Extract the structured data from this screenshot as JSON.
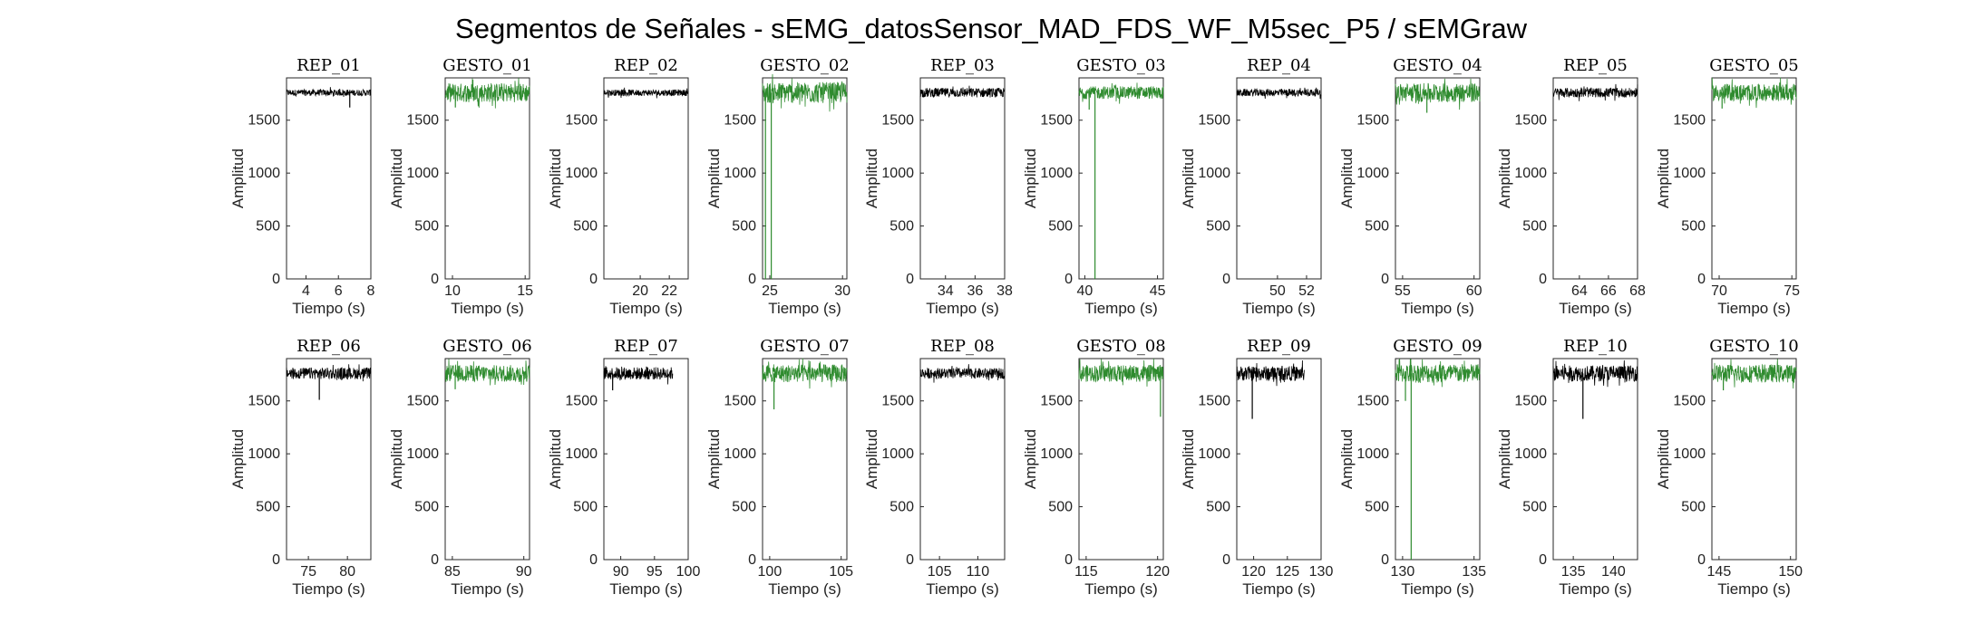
{
  "figure": {
    "title": "Segmentos de Señales - sEMG_datosSensor_MAD_FDS_WF_M5sec_P5 / sEMGraw"
  },
  "chart_data": [
    {
      "type": "line",
      "title": "REP_01",
      "xlabel": "Tiempo (s)",
      "ylabel": "Amplitud",
      "xlim": [
        2.8,
        8
      ],
      "xticks": [
        4,
        6,
        8
      ],
      "ylim": [
        0,
        1900
      ],
      "yticks": [
        0,
        500,
        1000,
        1500
      ],
      "color": "#000000",
      "series": [
        {
          "x": [
            2.8,
            8
          ],
          "y": [
            1760,
            1760
          ]
        }
      ],
      "noise": 30,
      "dips": [
        [
          6.7,
          1620
        ]
      ]
    },
    {
      "type": "line",
      "title": "GESTO_01",
      "xlabel": "Tiempo (s)",
      "ylabel": "Amplitud",
      "xlim": [
        9.5,
        15.3
      ],
      "xticks": [
        10,
        15
      ],
      "ylim": [
        0,
        1900
      ],
      "yticks": [
        0,
        500,
        1000,
        1500
      ],
      "color": "#2e8b2e",
      "series": [
        {
          "x": [
            9.5,
            15.3
          ],
          "y": [
            1760,
            1760
          ]
        }
      ],
      "noise": 90,
      "dips": [
        [
          10.2,
          1620
        ]
      ]
    },
    {
      "type": "line",
      "title": "REP_02",
      "xlabel": "Tiempo (s)",
      "ylabel": "Amplitud",
      "xlim": [
        17.5,
        23.3
      ],
      "xticks": [
        20,
        22
      ],
      "ylim": [
        0,
        1900
      ],
      "yticks": [
        0,
        500,
        1000,
        1500
      ],
      "color": "#000000",
      "series": [
        {
          "x": [
            17.5,
            23.3
          ],
          "y": [
            1760,
            1760
          ]
        }
      ],
      "noise": 30,
      "dips": []
    },
    {
      "type": "line",
      "title": "GESTO_02",
      "xlabel": "Tiempo (s)",
      "ylabel": "Amplitud",
      "xlim": [
        24.5,
        30.3
      ],
      "xticks": [
        25,
        30
      ],
      "ylim": [
        0,
        1900
      ],
      "yticks": [
        0,
        500,
        1000,
        1500
      ],
      "color": "#2e8b2e",
      "series": [
        {
          "x": [
            24.5,
            30.3
          ],
          "y": [
            1760,
            1760
          ]
        }
      ],
      "noise": 100,
      "dips": [
        [
          24.7,
          0
        ],
        [
          25.1,
          0
        ]
      ]
    },
    {
      "type": "line",
      "title": "REP_03",
      "xlabel": "Tiempo (s)",
      "ylabel": "Amplitud",
      "xlim": [
        32.3,
        38
      ],
      "xticks": [
        34,
        36,
        38
      ],
      "ylim": [
        0,
        1900
      ],
      "yticks": [
        0,
        500,
        1000,
        1500
      ],
      "color": "#000000",
      "series": [
        {
          "x": [
            32.3,
            38
          ],
          "y": [
            1760,
            1760
          ]
        }
      ],
      "noise": 45,
      "dips": []
    },
    {
      "type": "line",
      "title": "GESTO_03",
      "xlabel": "Tiempo (s)",
      "ylabel": "Amplitud",
      "xlim": [
        39.6,
        45.4
      ],
      "xticks": [
        40,
        45
      ],
      "ylim": [
        0,
        1900
      ],
      "yticks": [
        0,
        500,
        1000,
        1500
      ],
      "color": "#2e8b2e",
      "series": [
        {
          "x": [
            39.6,
            45.4
          ],
          "y": [
            1760,
            1760
          ]
        }
      ],
      "noise": 60,
      "dips": [
        [
          40.7,
          0
        ],
        [
          40.3,
          1600
        ]
      ]
    },
    {
      "type": "line",
      "title": "REP_04",
      "xlabel": "Tiempo (s)",
      "ylabel": "Amplitud",
      "xlim": [
        47.2,
        53
      ],
      "xticks": [
        50,
        52
      ],
      "ylim": [
        0,
        1900
      ],
      "yticks": [
        0,
        500,
        1000,
        1500
      ],
      "color": "#000000",
      "series": [
        {
          "x": [
            47.2,
            53
          ],
          "y": [
            1760,
            1760
          ]
        }
      ],
      "noise": 35,
      "dips": []
    },
    {
      "type": "line",
      "title": "GESTO_04",
      "xlabel": "Tiempo (s)",
      "ylabel": "Amplitud",
      "xlim": [
        54.5,
        60.4
      ],
      "xticks": [
        55,
        60
      ],
      "ylim": [
        0,
        1900
      ],
      "yticks": [
        0,
        500,
        1000,
        1500
      ],
      "color": "#2e8b2e",
      "series": [
        {
          "x": [
            54.5,
            60.4
          ],
          "y": [
            1760,
            1760
          ]
        }
      ],
      "noise": 90,
      "dips": [
        [
          56.7,
          1570
        ]
      ]
    },
    {
      "type": "line",
      "title": "REP_05",
      "xlabel": "Tiempo (s)",
      "ylabel": "Amplitud",
      "xlim": [
        62.2,
        68
      ],
      "xticks": [
        64,
        66,
        68
      ],
      "ylim": [
        0,
        1900
      ],
      "yticks": [
        0,
        500,
        1000,
        1500
      ],
      "color": "#000000",
      "series": [
        {
          "x": [
            62.2,
            68
          ],
          "y": [
            1760,
            1760
          ]
        }
      ],
      "noise": 45,
      "dips": []
    },
    {
      "type": "line",
      "title": "GESTO_05",
      "xlabel": "Tiempo (s)",
      "ylabel": "Amplitud",
      "xlim": [
        69.5,
        75.3
      ],
      "xticks": [
        70,
        75
      ],
      "ylim": [
        0,
        1900
      ],
      "yticks": [
        0,
        500,
        1000,
        1500
      ],
      "color": "#2e8b2e",
      "series": [
        {
          "x": [
            69.5,
            75.3
          ],
          "y": [
            1760,
            1760
          ]
        }
      ],
      "noise": 80,
      "dips": [
        [
          70.2,
          1610
        ]
      ]
    },
    {
      "type": "line",
      "title": "REP_06",
      "xlabel": "Tiempo (s)",
      "ylabel": "Amplitud",
      "xlim": [
        72.2,
        83
      ],
      "xticks": [
        75,
        80
      ],
      "ylim": [
        0,
        1900
      ],
      "yticks": [
        0,
        500,
        1000,
        1500
      ],
      "color": "#000000",
      "series": [
        {
          "x": [
            72.2,
            83
          ],
          "y": [
            1760,
            1760
          ]
        }
      ],
      "noise": 55,
      "dips": [
        [
          76.4,
          1510
        ]
      ]
    },
    {
      "type": "line",
      "title": "GESTO_06",
      "xlabel": "Tiempo (s)",
      "ylabel": "Amplitud",
      "xlim": [
        84.5,
        90.4
      ],
      "xticks": [
        85,
        90
      ],
      "ylim": [
        0,
        1900
      ],
      "yticks": [
        0,
        500,
        1000,
        1500
      ],
      "color": "#2e8b2e",
      "series": [
        {
          "x": [
            84.5,
            90.4
          ],
          "y": [
            1760,
            1760
          ]
        }
      ],
      "noise": 80,
      "dips": [
        [
          85.2,
          1610
        ]
      ]
    },
    {
      "type": "line",
      "title": "REP_07",
      "xlabel": "Tiempo (s)",
      "ylabel": "Amplitud",
      "xlim": [
        87.5,
        100
      ],
      "xticks": [
        90,
        95,
        100
      ],
      "ylim": [
        0,
        1900
      ],
      "yticks": [
        0,
        500,
        1000,
        1500
      ],
      "color": "#000000",
      "series": [
        {
          "x": [
            87.5,
            97.7
          ],
          "y": [
            1760,
            1760
          ]
        }
      ],
      "noise": 60,
      "dips": [
        [
          88.8,
          1600
        ]
      ]
    },
    {
      "type": "line",
      "title": "GESTO_07",
      "xlabel": "Tiempo (s)",
      "ylabel": "Amplitud",
      "xlim": [
        99.5,
        105.4
      ],
      "xticks": [
        100,
        105
      ],
      "ylim": [
        0,
        1900
      ],
      "yticks": [
        0,
        500,
        1000,
        1500
      ],
      "color": "#2e8b2e",
      "series": [
        {
          "x": [
            99.5,
            105.4
          ],
          "y": [
            1760,
            1760
          ]
        }
      ],
      "noise": 85,
      "dips": [
        [
          100.3,
          1420
        ]
      ]
    },
    {
      "type": "line",
      "title": "REP_08",
      "xlabel": "Tiempo (s)",
      "ylabel": "Amplitud",
      "xlim": [
        102.5,
        113.5
      ],
      "xticks": [
        105,
        110
      ],
      "ylim": [
        0,
        1900
      ],
      "yticks": [
        0,
        500,
        1000,
        1500
      ],
      "color": "#000000",
      "series": [
        {
          "x": [
            102.5,
            113.5
          ],
          "y": [
            1760,
            1760
          ]
        }
      ],
      "noise": 50,
      "dips": []
    },
    {
      "type": "line",
      "title": "GESTO_08",
      "xlabel": "Tiempo (s)",
      "ylabel": "Amplitud",
      "xlim": [
        114.5,
        120.4
      ],
      "xticks": [
        115,
        120
      ],
      "ylim": [
        0,
        1900
      ],
      "yticks": [
        0,
        500,
        1000,
        1500
      ],
      "color": "#2e8b2e",
      "series": [
        {
          "x": [
            114.5,
            120.4
          ],
          "y": [
            1760,
            1760
          ]
        }
      ],
      "noise": 80,
      "dips": [
        [
          120.2,
          1350
        ]
      ]
    },
    {
      "type": "line",
      "title": "REP_09",
      "xlabel": "Tiempo (s)",
      "ylabel": "Amplitud",
      "xlim": [
        117.5,
        130
      ],
      "xticks": [
        120,
        125,
        130
      ],
      "ylim": [
        0,
        1900
      ],
      "yticks": [
        0,
        500,
        1000,
        1500
      ],
      "color": "#000000",
      "series": [
        {
          "x": [
            117.5,
            127.5
          ],
          "y": [
            1760,
            1760
          ]
        }
      ],
      "noise": 70,
      "dips": [
        [
          119.8,
          1330
        ]
      ]
    },
    {
      "type": "line",
      "title": "GESTO_09",
      "xlabel": "Tiempo (s)",
      "ylabel": "Amplitud",
      "xlim": [
        129.5,
        135.4
      ],
      "xticks": [
        130,
        135
      ],
      "ylim": [
        0,
        1900
      ],
      "yticks": [
        0,
        500,
        1000,
        1500
      ],
      "color": "#2e8b2e",
      "series": [
        {
          "x": [
            129.5,
            135.4
          ],
          "y": [
            1760,
            1760
          ]
        }
      ],
      "noise": 90,
      "dips": [
        [
          130.6,
          0
        ],
        [
          130.2,
          1500
        ]
      ]
    },
    {
      "type": "line",
      "title": "REP_10",
      "xlabel": "Tiempo (s)",
      "ylabel": "Amplitud",
      "xlim": [
        132.5,
        143
      ],
      "xticks": [
        135,
        140
      ],
      "ylim": [
        0,
        1900
      ],
      "yticks": [
        0,
        500,
        1000,
        1500
      ],
      "color": "#000000",
      "series": [
        {
          "x": [
            132.5,
            143
          ],
          "y": [
            1760,
            1760
          ]
        }
      ],
      "noise": 75,
      "dips": [
        [
          136.2,
          1330
        ]
      ]
    },
    {
      "type": "line",
      "title": "GESTO_10",
      "xlabel": "Tiempo (s)",
      "ylabel": "Amplitud",
      "xlim": [
        144.5,
        150.4
      ],
      "xticks": [
        145,
        150
      ],
      "ylim": [
        0,
        1900
      ],
      "yticks": [
        0,
        500,
        1000,
        1500
      ],
      "color": "#2e8b2e",
      "series": [
        {
          "x": [
            144.5,
            150.4
          ],
          "y": [
            1760,
            1760
          ]
        }
      ],
      "noise": 85,
      "dips": [
        [
          145.3,
          1600
        ]
      ]
    }
  ]
}
